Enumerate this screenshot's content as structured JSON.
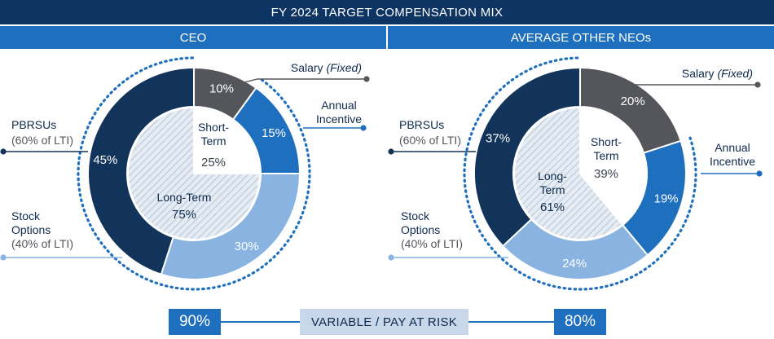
{
  "title": "FY 2024 TARGET COMPENSATION MIX",
  "footer": {
    "label": "VARIABLE / PAY AT RISK",
    "ceo_value": "90%",
    "neo_value": "80%"
  },
  "colors": {
    "navy": "#0e3463",
    "accent_blue": "#1f6fbf",
    "dark_navy": "#13345a",
    "gray": "#54565b",
    "light_blue": "#89b3e1",
    "hatch": "#d4dde8",
    "footer_bg": "#c9d7ea",
    "dot_blue": "#1f6fbf",
    "dot_gray": "#54565b",
    "dot_light": "#89b3e1"
  },
  "chart_data": [
    {
      "type": "pie",
      "title": "CEO",
      "outer_ring": {
        "order": [
          "Salary",
          "Annual Incentive",
          "Stock Options",
          "PBRSUs"
        ],
        "values": [
          10,
          15,
          30,
          45
        ],
        "value_labels": [
          "10%",
          "15%",
          "30%",
          "45%"
        ]
      },
      "inner_ring": {
        "order": [
          "Short-Term",
          "Long-Term"
        ],
        "values": [
          25,
          75
        ],
        "labels": [
          "Short-\nTerm",
          "Long-Term"
        ],
        "value_labels": [
          "25%",
          "75%"
        ]
      },
      "callouts": {
        "salary": "Salary",
        "salary_note": "(Fixed)",
        "annual_incentive": "Annual\nIncentive",
        "pbrsus": "PBRSUs",
        "pbrsus_note": "(60% of LTI)",
        "stock_options": "Stock\nOptions",
        "stock_options_note": "(40% of LTI)"
      },
      "variable_pay_at_risk": 90
    },
    {
      "type": "pie",
      "title": "AVERAGE OTHER NEOs",
      "outer_ring": {
        "order": [
          "Salary",
          "Annual Incentive",
          "Stock Options",
          "PBRSUs"
        ],
        "values": [
          20,
          19,
          24,
          37
        ],
        "value_labels": [
          "20%",
          "19%",
          "24%",
          "37%"
        ]
      },
      "inner_ring": {
        "order": [
          "Short-Term",
          "Long-Term"
        ],
        "values": [
          39,
          61
        ],
        "labels": [
          "Short-\nTerm",
          "Long-\nTerm"
        ],
        "value_labels": [
          "39%",
          "61%"
        ]
      },
      "callouts": {
        "salary": "Salary",
        "salary_note": "(Fixed)",
        "annual_incentive": "Annual\nIncentive",
        "pbrsus": "PBRSUs",
        "pbrsus_note": "(60% of LTI)",
        "stock_options": "Stock\nOptions",
        "stock_options_note": "(40% of LTI)"
      },
      "variable_pay_at_risk": 80
    }
  ]
}
